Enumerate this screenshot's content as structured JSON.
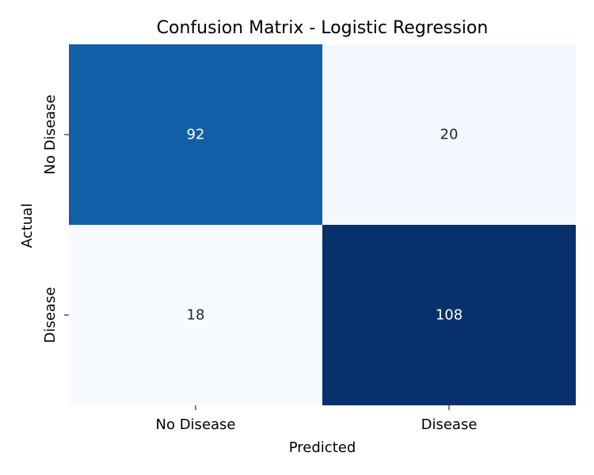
{
  "chart_data": {
    "type": "heatmap",
    "title": "Confusion Matrix - Logistic Regression",
    "xlabel": "Predicted",
    "ylabel": "Actual",
    "x_categories": [
      "No Disease",
      "Disease"
    ],
    "y_categories": [
      "No Disease",
      "Disease"
    ],
    "values": [
      [
        92,
        20
      ],
      [
        18,
        108
      ]
    ],
    "colormap": "Blues",
    "colorbar": false,
    "grid": false
  }
}
